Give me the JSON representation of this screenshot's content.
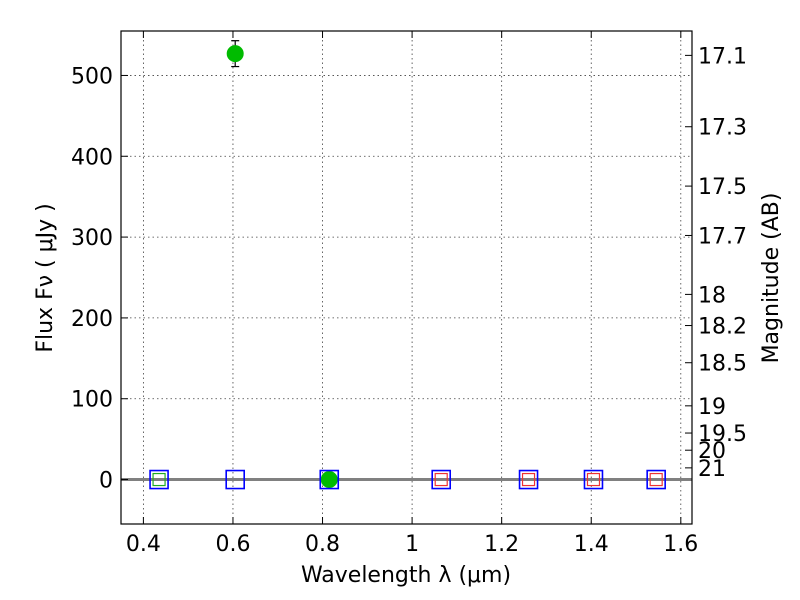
{
  "chart_data": {
    "type": "scatter",
    "title": "",
    "xlabel": "Wavelength  λ (μm)",
    "ylabel": "Flux  Fν  ( μJy )",
    "ylabel_right": "Magnitude (AB)",
    "xlim": [
      0.35,
      1.625
    ],
    "ylim": [
      -55,
      555
    ],
    "grid": true,
    "x_ticks": [
      0.4,
      0.6,
      0.8,
      1.0,
      1.2,
      1.4,
      1.6
    ],
    "x_tick_labels": [
      "0.4",
      "0.6",
      "0.8",
      "1",
      "1.2",
      "1.4",
      "1.6"
    ],
    "y_ticks": [
      0,
      100,
      200,
      300,
      400,
      500
    ],
    "y_tick_labels": [
      "0",
      "100",
      "200",
      "300",
      "400",
      "500"
    ],
    "right_ticks": [
      {
        "mag": 17.1,
        "label": "17.1"
      },
      {
        "mag": 17.3,
        "label": "17.3"
      },
      {
        "mag": 17.5,
        "label": "17.5"
      },
      {
        "mag": 17.7,
        "label": "17.7"
      },
      {
        "mag": 18.0,
        "label": "18"
      },
      {
        "mag": 18.2,
        "label": "18.2"
      },
      {
        "mag": 18.5,
        "label": "18.5"
      },
      {
        "mag": 19.0,
        "label": "19"
      },
      {
        "mag": 19.5,
        "label": "19.5"
      },
      {
        "mag": 20.0,
        "label": "20"
      },
      {
        "mag": 21.0,
        "label": "21"
      }
    ],
    "zero_line_color": "#808080",
    "series": [
      {
        "marker": "circle",
        "color": "#00bb00",
        "points": [
          {
            "x": 0.605,
            "y": 527,
            "yerr": 16
          },
          {
            "x": 0.815,
            "y": 0,
            "yerr": 4
          }
        ]
      },
      {
        "marker": "square-open",
        "color": "#0000ff",
        "points": [
          {
            "x": 0.435,
            "y": 0
          },
          {
            "x": 0.605,
            "y": 0
          },
          {
            "x": 0.815,
            "y": 0
          },
          {
            "x": 1.065,
            "y": 0
          },
          {
            "x": 1.26,
            "y": 0
          },
          {
            "x": 1.405,
            "y": 0
          },
          {
            "x": 1.545,
            "y": 0
          }
        ]
      },
      {
        "marker": "square-open-small",
        "color": "#22aa22",
        "points": [
          {
            "x": 0.435,
            "y": 0
          }
        ]
      },
      {
        "marker": "square-open-small",
        "color": "#ee3333",
        "points": [
          {
            "x": 1.065,
            "y": 0
          },
          {
            "x": 1.26,
            "y": 0
          },
          {
            "x": 1.405,
            "y": 0
          },
          {
            "x": 1.545,
            "y": 0
          }
        ]
      }
    ]
  }
}
